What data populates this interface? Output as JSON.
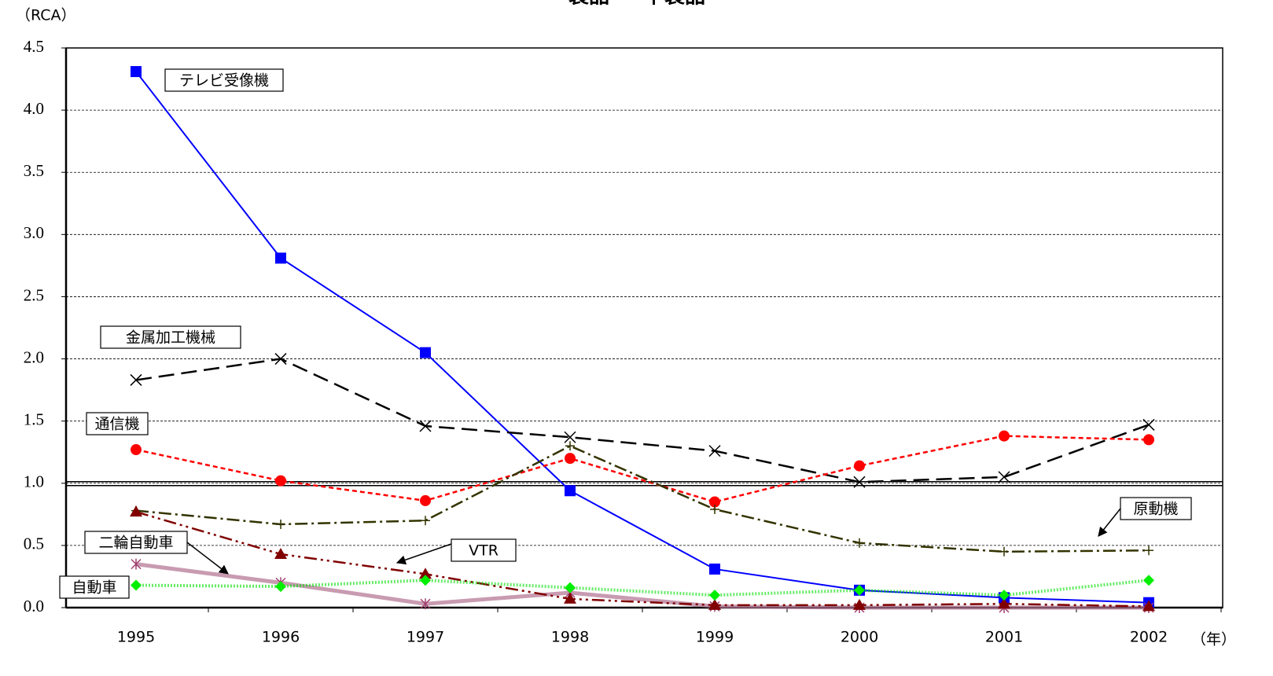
{
  "chart_data": {
    "type": "line",
    "title": "製品 － 下製品",
    "y_label": "（RCA）",
    "x_label": "（年）",
    "categories": [
      "1995",
      "1996",
      "1997",
      "1998",
      "1999",
      "2000",
      "2001",
      "2002"
    ],
    "ylim": [
      0,
      4.5
    ],
    "yticks": [
      {
        "value": 0,
        "label": "0.0"
      },
      {
        "value": 0.5,
        "label": "0.5"
      },
      {
        "value": 1,
        "label": "1.0"
      },
      {
        "value": 1.5,
        "label": "1.5"
      },
      {
        "value": 2,
        "label": "2.0"
      },
      {
        "value": 2.5,
        "label": "2.5"
      },
      {
        "value": 3,
        "label": "3.0"
      },
      {
        "value": 3.5,
        "label": "3.5"
      },
      {
        "value": 4,
        "label": "4.0"
      },
      {
        "value": 4.5,
        "label": "4.5"
      }
    ],
    "grid": true,
    "series": [
      {
        "name": "テレビ受像機",
        "color": "#0000ff",
        "values": [
          4.31,
          2.81,
          2.05,
          0.94,
          0.31,
          0.14,
          0.08,
          0.04
        ]
      },
      {
        "name": "金属加工機械",
        "color": "#000000",
        "values": [
          1.83,
          2.0,
          1.46,
          1.37,
          1.26,
          1.01,
          1.05,
          1.47
        ]
      },
      {
        "name": "通信機",
        "color": "#ff0000",
        "values": [
          1.27,
          1.02,
          0.86,
          1.2,
          0.85,
          1.14,
          1.38,
          1.35
        ]
      },
      {
        "name": "原動機",
        "color": "#333300",
        "values": [
          0.78,
          0.67,
          0.7,
          1.3,
          0.79,
          0.52,
          0.45,
          0.46
        ]
      },
      {
        "name": "二輪自動車",
        "color": "#b07090",
        "values": [
          0.35,
          0.2,
          0.03,
          0.12,
          0.01,
          0.0,
          0.0,
          0.0
        ]
      },
      {
        "name": "VTR",
        "color": "#800000",
        "values": [
          0.77,
          0.43,
          0.27,
          0.07,
          0.02,
          0.02,
          0.03,
          0.01
        ]
      },
      {
        "name": "自動車",
        "color": "#00dd00",
        "values": [
          0.18,
          0.17,
          0.22,
          0.16,
          0.1,
          0.14,
          0.1,
          0.22
        ]
      }
    ]
  }
}
